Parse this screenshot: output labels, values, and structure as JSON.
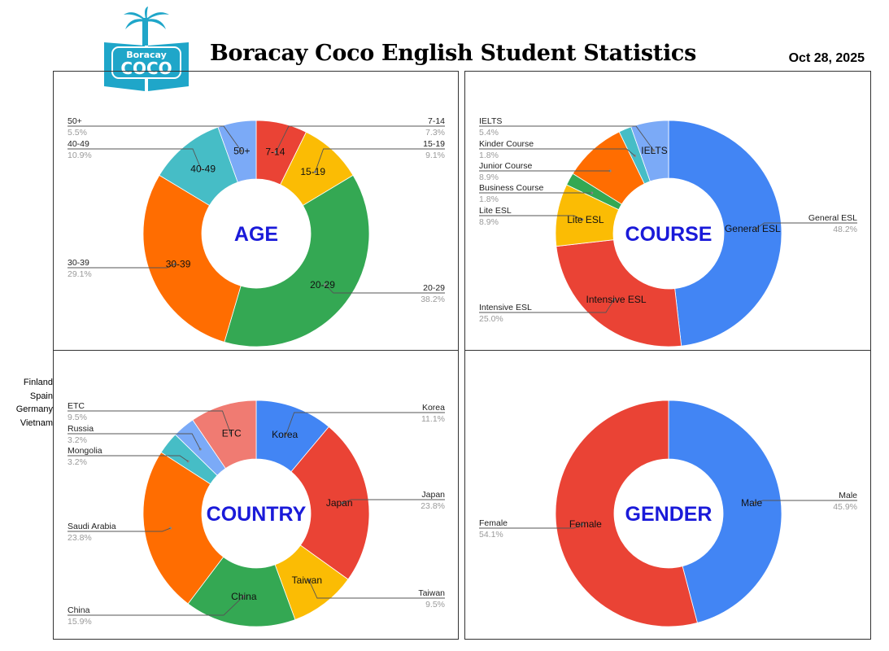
{
  "header": {
    "title": "Boracay Coco English Student Statistics",
    "date": "Oct 28, 2025",
    "logo_top": "Boracay",
    "logo_main": "COCO"
  },
  "colors": {
    "blue": "#4285f4",
    "red": "#ea4335",
    "yellow": "#fbbc04",
    "green": "#34a853",
    "orange": "#ff6d01",
    "teal": "#46bdc6",
    "light_blue": "#7baaf7",
    "salmon": "#f07b72",
    "center_label": "#1a1ad9",
    "logo_teal": "#1fa6c9"
  },
  "side_notes": [
    "Finland",
    "Spain",
    "Germany",
    "Vietnam"
  ],
  "chart_data": [
    {
      "type": "pie",
      "center_label": "AGE",
      "slices": [
        {
          "label": "7-14",
          "value": 7.3,
          "pct": "7.3%",
          "color": "#ea4335"
        },
        {
          "label": "15-19",
          "value": 9.1,
          "pct": "9.1%",
          "color": "#fbbc04"
        },
        {
          "label": "20-29",
          "value": 38.2,
          "pct": "38.2%",
          "color": "#34a853"
        },
        {
          "label": "30-39",
          "value": 29.1,
          "pct": "29.1%",
          "color": "#ff6d01"
        },
        {
          "label": "40-49",
          "value": 10.9,
          "pct": "10.9%",
          "color": "#46bdc6"
        },
        {
          "label": "50+",
          "value": 5.5,
          "pct": "5.5%",
          "color": "#7baaf7"
        }
      ]
    },
    {
      "type": "pie",
      "center_label": "COURSE",
      "slices": [
        {
          "label": "General ESL",
          "value": 48.2,
          "pct": "48.2%",
          "color": "#4285f4"
        },
        {
          "label": "Intensive ESL",
          "value": 25.0,
          "pct": "25.0%",
          "color": "#ea4335"
        },
        {
          "label": "Lite ESL",
          "value": 8.9,
          "pct": "8.9%",
          "color": "#fbbc04"
        },
        {
          "label": "Business Course",
          "value": 1.8,
          "pct": "1.8%",
          "color": "#34a853"
        },
        {
          "label": "Junior Course",
          "value": 8.9,
          "pct": "8.9%",
          "color": "#ff6d01"
        },
        {
          "label": "Kinder Course",
          "value": 1.8,
          "pct": "1.8%",
          "color": "#46bdc6"
        },
        {
          "label": "IELTS",
          "value": 5.4,
          "pct": "5.4%",
          "color": "#7baaf7"
        }
      ]
    },
    {
      "type": "pie",
      "center_label": "COUNTRY",
      "slices": [
        {
          "label": "Korea",
          "value": 11.1,
          "pct": "11.1%",
          "color": "#4285f4"
        },
        {
          "label": "Japan",
          "value": 23.8,
          "pct": "23.8%",
          "color": "#ea4335"
        },
        {
          "label": "Taiwan",
          "value": 9.5,
          "pct": "9.5%",
          "color": "#fbbc04"
        },
        {
          "label": "China",
          "value": 15.9,
          "pct": "15.9%",
          "color": "#34a853"
        },
        {
          "label": "Saudi Arabia",
          "value": 23.8,
          "pct": "23.8%",
          "color": "#ff6d01"
        },
        {
          "label": "Mongolia",
          "value": 3.2,
          "pct": "3.2%",
          "color": "#46bdc6"
        },
        {
          "label": "Russia",
          "value": 3.2,
          "pct": "3.2%",
          "color": "#7baaf7"
        },
        {
          "label": "ETC",
          "value": 9.5,
          "pct": "9.5%",
          "color": "#f07b72"
        }
      ]
    },
    {
      "type": "pie",
      "center_label": "GENDER",
      "slices": [
        {
          "label": "Male",
          "value": 45.9,
          "pct": "45.9%",
          "color": "#4285f4"
        },
        {
          "label": "Female",
          "value": 54.1,
          "pct": "54.1%",
          "color": "#ea4335"
        }
      ]
    }
  ]
}
